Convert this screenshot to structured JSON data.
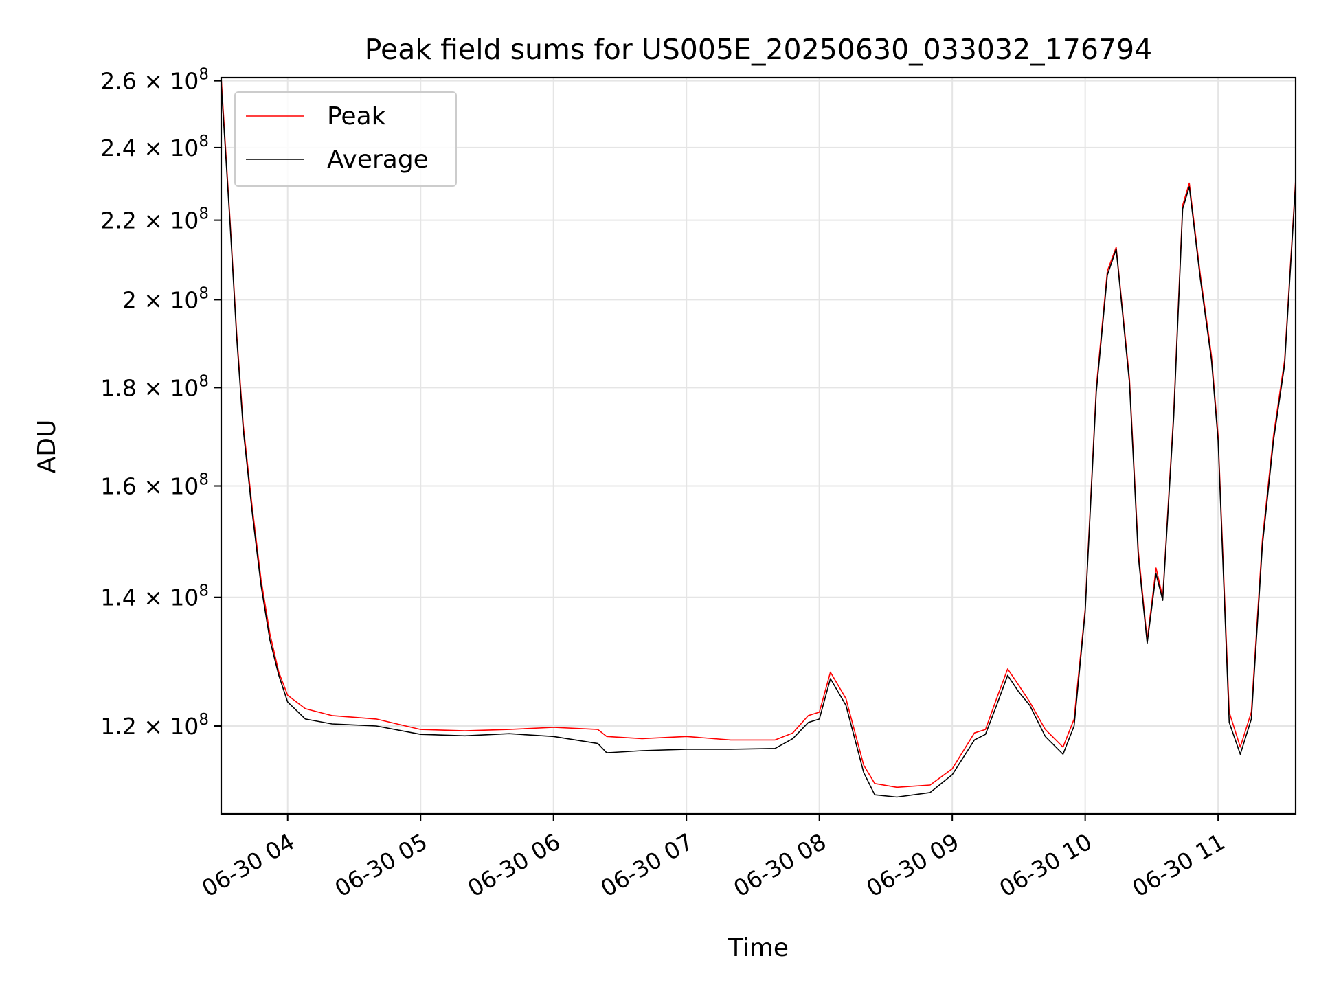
{
  "chart_data": {
    "type": "line",
    "title": "Peak field sums for US005E_20250630_033032_176794",
    "xlabel": "Time",
    "ylabel": "ADU",
    "y_scale": "log",
    "ylim": [
      108000000,
      261000000
    ],
    "xlim": [
      "2025-06-30 03:30",
      "2025-06-30 11:35"
    ],
    "grid": true,
    "legend": {
      "position": "top-left",
      "entries": [
        "Peak",
        "Average"
      ]
    },
    "x_ticks": [
      {
        "label": "06-30 04",
        "value": "2025-06-30 04:00"
      },
      {
        "label": "06-30 05",
        "value": "2025-06-30 05:00"
      },
      {
        "label": "06-30 06",
        "value": "2025-06-30 06:00"
      },
      {
        "label": "06-30 07",
        "value": "2025-06-30 07:00"
      },
      {
        "label": "06-30 08",
        "value": "2025-06-30 08:00"
      },
      {
        "label": "06-30 09",
        "value": "2025-06-30 09:00"
      },
      {
        "label": "06-30 10",
        "value": "2025-06-30 10:00"
      },
      {
        "label": "06-30 11",
        "value": "2025-06-30 11:00"
      }
    ],
    "y_ticks": [
      {
        "mantissa": "1.2",
        "exponent": "8",
        "value": 120000000
      },
      {
        "mantissa": "1.4",
        "exponent": "8",
        "value": 140000000
      },
      {
        "mantissa": "1.6",
        "exponent": "8",
        "value": 160000000
      },
      {
        "mantissa": "1.8",
        "exponent": "8",
        "value": 180000000
      },
      {
        "mantissa": "2",
        "exponent": "8",
        "value": 200000000
      },
      {
        "mantissa": "2.2",
        "exponent": "8",
        "value": 220000000
      },
      {
        "mantissa": "2.4",
        "exponent": "8",
        "value": 240000000
      },
      {
        "mantissa": "2.6",
        "exponent": "8",
        "value": 260000000
      }
    ],
    "series": [
      {
        "name": "Peak",
        "color": "#ff0000",
        "x": [
          "2025-06-30 03:30",
          "2025-06-30 03:34",
          "2025-06-30 03:37",
          "2025-06-30 03:40",
          "2025-06-30 03:44",
          "2025-06-30 03:48",
          "2025-06-30 03:52",
          "2025-06-30 03:56",
          "2025-06-30 04:00",
          "2025-06-30 04:08",
          "2025-06-30 04:20",
          "2025-06-30 04:40",
          "2025-06-30 05:00",
          "2025-06-30 05:20",
          "2025-06-30 05:40",
          "2025-06-30 06:00",
          "2025-06-30 06:20",
          "2025-06-30 06:24",
          "2025-06-30 06:40",
          "2025-06-30 07:00",
          "2025-06-30 07:20",
          "2025-06-30 07:40",
          "2025-06-30 07:48",
          "2025-06-30 07:55",
          "2025-06-30 08:00",
          "2025-06-30 08:05",
          "2025-06-30 08:12",
          "2025-06-30 08:20",
          "2025-06-30 08:25",
          "2025-06-30 08:35",
          "2025-06-30 08:50",
          "2025-06-30 09:00",
          "2025-06-30 09:10",
          "2025-06-30 09:15",
          "2025-06-30 09:20",
          "2025-06-30 09:25",
          "2025-06-30 09:30",
          "2025-06-30 09:35",
          "2025-06-30 09:42",
          "2025-06-30 09:50",
          "2025-06-30 09:55",
          "2025-06-30 10:00",
          "2025-06-30 10:05",
          "2025-06-30 10:10",
          "2025-06-30 10:14",
          "2025-06-30 10:20",
          "2025-06-30 10:24",
          "2025-06-30 10:28",
          "2025-06-30 10:32",
          "2025-06-30 10:35",
          "2025-06-30 10:40",
          "2025-06-30 10:44",
          "2025-06-30 10:47",
          "2025-06-30 10:52",
          "2025-06-30 10:57",
          "2025-06-30 11:00",
          "2025-06-30 11:05",
          "2025-06-30 11:10",
          "2025-06-30 11:15",
          "2025-06-30 11:20",
          "2025-06-30 11:25",
          "2025-06-30 11:30",
          "2025-06-30 11:35"
        ],
        "values": [
          261000000,
          220000000,
          192000000,
          172000000,
          156000000,
          143000000,
          134000000,
          128000000,
          124500000,
          122500000,
          121500000,
          121000000,
          119500000,
          119300000,
          119500000,
          119800000,
          119500000,
          118500000,
          118200000,
          118500000,
          118000000,
          118000000,
          119000000,
          121500000,
          122000000,
          128000000,
          124000000,
          114500000,
          112000000,
          111500000,
          111800000,
          114000000,
          119000000,
          119500000,
          124000000,
          128500000,
          126000000,
          123500000,
          119500000,
          117000000,
          121000000,
          138000000,
          180000000,
          207000000,
          213000000,
          182000000,
          148000000,
          133000000,
          145000000,
          140000000,
          175000000,
          224000000,
          230000000,
          206000000,
          187000000,
          170000000,
          122000000,
          117000000,
          122000000,
          150000000,
          170000000,
          186000000,
          231000000
        ]
      },
      {
        "name": "Average",
        "color": "#000000",
        "x": [
          "2025-06-30 03:30",
          "2025-06-30 03:34",
          "2025-06-30 03:37",
          "2025-06-30 03:40",
          "2025-06-30 03:44",
          "2025-06-30 03:48",
          "2025-06-30 03:52",
          "2025-06-30 03:56",
          "2025-06-30 04:00",
          "2025-06-30 04:08",
          "2025-06-30 04:20",
          "2025-06-30 04:40",
          "2025-06-30 05:00",
          "2025-06-30 05:20",
          "2025-06-30 05:40",
          "2025-06-30 06:00",
          "2025-06-30 06:20",
          "2025-06-30 06:24",
          "2025-06-30 06:40",
          "2025-06-30 07:00",
          "2025-06-30 07:20",
          "2025-06-30 07:40",
          "2025-06-30 07:48",
          "2025-06-30 07:55",
          "2025-06-30 08:00",
          "2025-06-30 08:05",
          "2025-06-30 08:12",
          "2025-06-30 08:20",
          "2025-06-30 08:25",
          "2025-06-30 08:35",
          "2025-06-30 08:50",
          "2025-06-30 09:00",
          "2025-06-30 09:10",
          "2025-06-30 09:15",
          "2025-06-30 09:20",
          "2025-06-30 09:25",
          "2025-06-30 09:30",
          "2025-06-30 09:35",
          "2025-06-30 09:42",
          "2025-06-30 09:50",
          "2025-06-30 09:55",
          "2025-06-30 10:00",
          "2025-06-30 10:05",
          "2025-06-30 10:10",
          "2025-06-30 10:14",
          "2025-06-30 10:20",
          "2025-06-30 10:24",
          "2025-06-30 10:28",
          "2025-06-30 10:32",
          "2025-06-30 10:35",
          "2025-06-30 10:40",
          "2025-06-30 10:44",
          "2025-06-30 10:47",
          "2025-06-30 10:52",
          "2025-06-30 10:57",
          "2025-06-30 11:00",
          "2025-06-30 11:05",
          "2025-06-30 11:10",
          "2025-06-30 11:15",
          "2025-06-30 11:20",
          "2025-06-30 11:25",
          "2025-06-30 11:30",
          "2025-06-30 11:35"
        ],
        "values": [
          259000000,
          219000000,
          191000000,
          171000000,
          155000000,
          142000000,
          133000000,
          127500000,
          123500000,
          121000000,
          120300000,
          120000000,
          118800000,
          118600000,
          118900000,
          118500000,
          117500000,
          116200000,
          116500000,
          116700000,
          116700000,
          116800000,
          118200000,
          120500000,
          121000000,
          127000000,
          123000000,
          113500000,
          110500000,
          110200000,
          110800000,
          113200000,
          118000000,
          118800000,
          123000000,
          127500000,
          125000000,
          123000000,
          118500000,
          116000000,
          120000000,
          137500000,
          179000000,
          206000000,
          212500000,
          181000000,
          147000000,
          132500000,
          144000000,
          139500000,
          174000000,
          223000000,
          229000000,
          205000000,
          186000000,
          169000000,
          120500000,
          116000000,
          121000000,
          149000000,
          169000000,
          185000000,
          230000000
        ]
      }
    ]
  }
}
